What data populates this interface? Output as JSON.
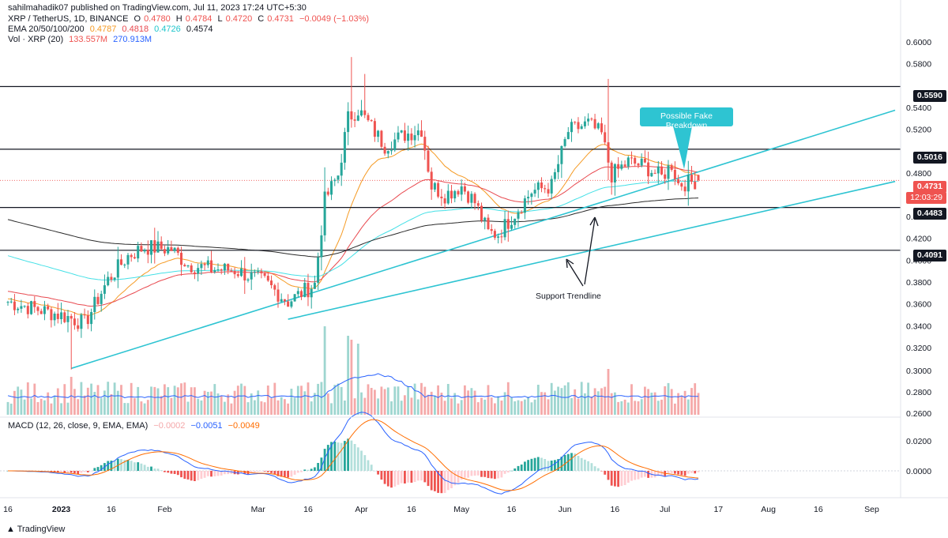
{
  "header": {
    "published": "sahilmahadik07 published on TradingView.com, Jul 11, 2023 17:24 UTC+5:30",
    "symbol": "XRP / TetherUS, 1D, BINANCE",
    "ohlc": {
      "o_label": "O",
      "o": "0.4780",
      "h_label": "H",
      "h": "0.4784",
      "l_label": "L",
      "l": "0.4720",
      "c_label": "C",
      "c": "0.4731",
      "chg": "−0.0049 (−1.03%)"
    },
    "ema": {
      "label": "EMA 20/50/100/200",
      "v20": "0.4787",
      "v50": "0.4818",
      "v100": "0.4726",
      "v200": "0.4574"
    },
    "vol": {
      "label": "Vol · XRP (20)",
      "v1": "133.557M",
      "v2": "270.913M"
    },
    "macd": {
      "label": "MACD (12, 26, close, 9, EMA, EMA)",
      "v1": "−0.0002",
      "v2": "−0.0051",
      "v3": "−0.0049"
    }
  },
  "price_axis_ticks": [
    "0.6000",
    "0.5800",
    "0.5400",
    "0.5200",
    "0.4800",
    "0.4400",
    "0.4200",
    "0.4000",
    "0.3800",
    "0.3600",
    "0.3400",
    "0.3200",
    "0.3000",
    "0.2800",
    "0.2600"
  ],
  "macd_axis_ticks": [
    "0.0200",
    "0.0000"
  ],
  "level_labels": [
    "0.5590",
    "0.5016",
    "0.4483",
    "0.4091"
  ],
  "current_price": {
    "value": "0.4731",
    "countdown": "12:03:29"
  },
  "x_axis_labels": [
    "16",
    "2023",
    "16",
    "Feb",
    "Mar",
    "16",
    "Apr",
    "16",
    "May",
    "16",
    "Jun",
    "16",
    "Jul",
    "17",
    "Aug",
    "16",
    "Sep"
  ],
  "annotations": {
    "callout": "Possible Fake Breakdown",
    "trendline_label": "Support Trendline"
  },
  "footer": {
    "brand": "TradingView"
  },
  "colors": {
    "up": "#26a69a",
    "down": "#ef5350",
    "ema20": "#f59a23",
    "ema50": "#e8494f",
    "ema100": "#44e0e6",
    "ema200": "#2a2a2a",
    "trend": "#2ec4d2",
    "macd": "#2962ff",
    "signal": "#ff6d00"
  },
  "chart_data": {
    "type": "candlestick",
    "title": "XRP / TetherUS, 1D, BINANCE",
    "ylim": [
      0.26,
      0.61
    ],
    "horizontal_levels": [
      0.559,
      0.5016,
      0.4483,
      0.4091
    ],
    "current_price": 0.4731,
    "trendlines": [
      {
        "from": {
          "date": "2023-01-04",
          "price": 0.301
        },
        "to": {
          "date": "2023-09-08",
          "price": 0.5373
        }
      },
      {
        "from": {
          "date": "2023-03-10",
          "price": 0.346
        },
        "to": {
          "date": "2023-09-08",
          "price": 0.4721
        }
      }
    ],
    "price_anchors": [
      {
        "date": "2022-12-16",
        "price": 0.362
      },
      {
        "date": "2023-01-03",
        "price": 0.348
      },
      {
        "date": "2023-01-08",
        "price": 0.342
      },
      {
        "date": "2023-01-15",
        "price": 0.382
      },
      {
        "date": "2023-01-21",
        "price": 0.404
      },
      {
        "date": "2023-01-26",
        "price": 0.412
      },
      {
        "date": "2023-02-03",
        "price": 0.41
      },
      {
        "date": "2023-02-08",
        "price": 0.396
      },
      {
        "date": "2023-02-15",
        "price": 0.392
      },
      {
        "date": "2023-02-22",
        "price": 0.391
      },
      {
        "date": "2023-03-03",
        "price": 0.38
      },
      {
        "date": "2023-03-10",
        "price": 0.362
      },
      {
        "date": "2023-03-18",
        "price": 0.378
      },
      {
        "date": "2023-03-21",
        "price": 0.455
      },
      {
        "date": "2023-03-25",
        "price": 0.478
      },
      {
        "date": "2023-03-28",
        "price": 0.53
      },
      {
        "date": "2023-03-31",
        "price": 0.538
      },
      {
        "date": "2023-04-08",
        "price": 0.505
      },
      {
        "date": "2023-04-14",
        "price": 0.515
      },
      {
        "date": "2023-04-19",
        "price": 0.52
      },
      {
        "date": "2023-04-22",
        "price": 0.468
      },
      {
        "date": "2023-04-26",
        "price": 0.46
      },
      {
        "date": "2023-05-01",
        "price": 0.468
      },
      {
        "date": "2023-05-05",
        "price": 0.453
      },
      {
        "date": "2023-05-09",
        "price": 0.425
      },
      {
        "date": "2023-05-12",
        "price": 0.424
      },
      {
        "date": "2023-05-17",
        "price": 0.443
      },
      {
        "date": "2023-05-22",
        "price": 0.463
      },
      {
        "date": "2023-05-28",
        "price": 0.468
      },
      {
        "date": "2023-06-02",
        "price": 0.518
      },
      {
        "date": "2023-06-08",
        "price": 0.525
      },
      {
        "date": "2023-06-12",
        "price": 0.515
      },
      {
        "date": "2023-06-15",
        "price": 0.478
      },
      {
        "date": "2023-06-20",
        "price": 0.49
      },
      {
        "date": "2023-06-25",
        "price": 0.486
      },
      {
        "date": "2023-06-30",
        "price": 0.476
      },
      {
        "date": "2023-07-03",
        "price": 0.488
      },
      {
        "date": "2023-07-05",
        "price": 0.47
      },
      {
        "date": "2023-07-08",
        "price": 0.471
      },
      {
        "date": "2023-07-11",
        "price": 0.4731
      }
    ]
  }
}
